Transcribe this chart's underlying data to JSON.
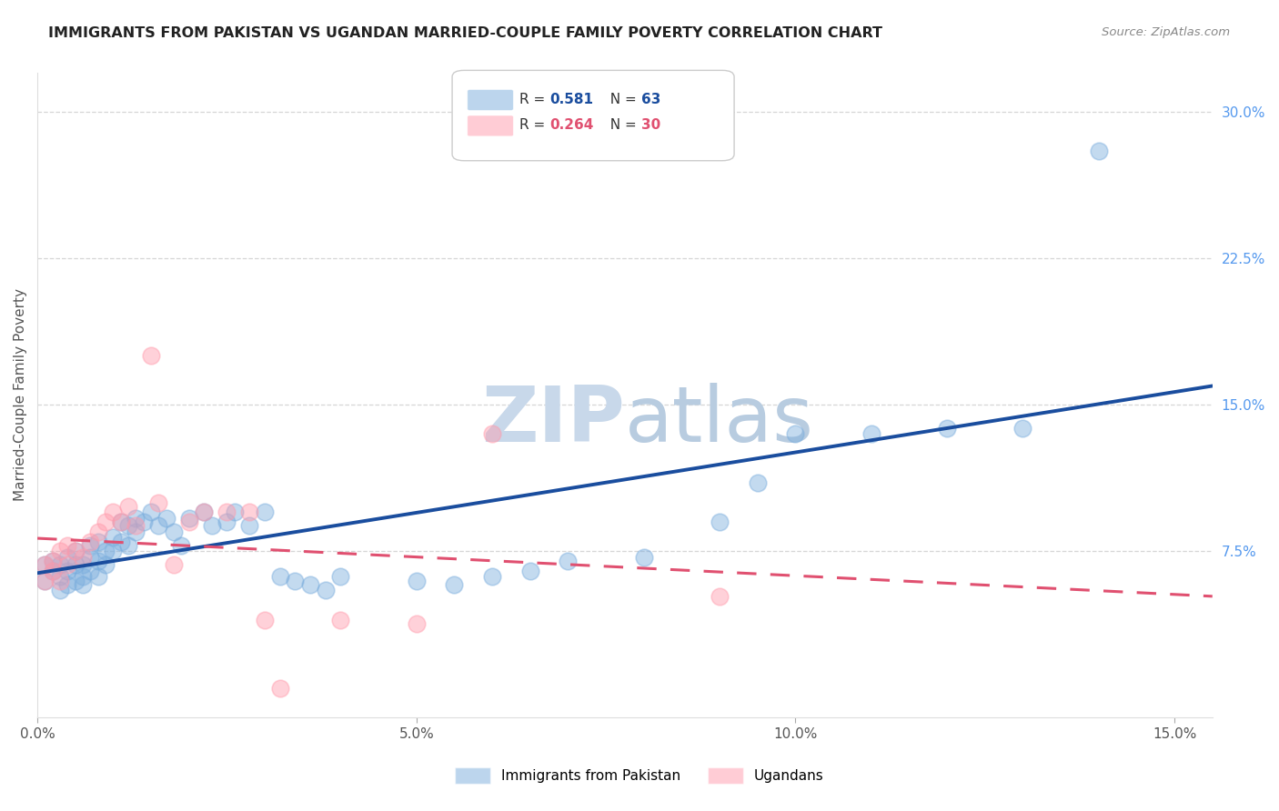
{
  "title": "IMMIGRANTS FROM PAKISTAN VS UGANDAN MARRIED-COUPLE FAMILY POVERTY CORRELATION CHART",
  "source": "Source: ZipAtlas.com",
  "ylabel": "Married-Couple Family Poverty",
  "xlim": [
    0.0,
    0.155
  ],
  "ylim": [
    -0.01,
    0.32
  ],
  "xticks": [
    0.0,
    0.05,
    0.1,
    0.15
  ],
  "xtick_labels": [
    "0.0%",
    "5.0%",
    "10.0%",
    "15.0%"
  ],
  "yticks_right": [
    0.075,
    0.15,
    0.225,
    0.3
  ],
  "ytick_labels_right": [
    "7.5%",
    "15.0%",
    "22.5%",
    "30.0%"
  ],
  "pakistan_R": 0.581,
  "pakistan_N": 63,
  "uganda_R": 0.264,
  "uganda_N": 30,
  "pakistan_color": "#7AADDD",
  "uganda_color": "#FF9BAC",
  "pakistan_line_color": "#1A4D9E",
  "uganda_line_color": "#E05070",
  "background_color": "#FFFFFF",
  "grid_color": "#CCCCCC",
  "watermark_color": "#C8D8EA",
  "pakistan_x": [
    0.001,
    0.001,
    0.002,
    0.002,
    0.003,
    0.003,
    0.003,
    0.004,
    0.004,
    0.004,
    0.005,
    0.005,
    0.005,
    0.006,
    0.006,
    0.006,
    0.007,
    0.007,
    0.007,
    0.008,
    0.008,
    0.008,
    0.009,
    0.009,
    0.01,
    0.01,
    0.011,
    0.011,
    0.012,
    0.012,
    0.013,
    0.013,
    0.014,
    0.015,
    0.016,
    0.017,
    0.018,
    0.019,
    0.02,
    0.022,
    0.023,
    0.025,
    0.026,
    0.028,
    0.03,
    0.032,
    0.034,
    0.036,
    0.038,
    0.04,
    0.05,
    0.055,
    0.06,
    0.065,
    0.07,
    0.08,
    0.09,
    0.095,
    0.1,
    0.11,
    0.12,
    0.13,
    0.14
  ],
  "pakistan_y": [
    0.06,
    0.068,
    0.065,
    0.07,
    0.055,
    0.062,
    0.068,
    0.058,
    0.065,
    0.072,
    0.06,
    0.068,
    0.075,
    0.062,
    0.068,
    0.058,
    0.065,
    0.072,
    0.078,
    0.062,
    0.07,
    0.08,
    0.068,
    0.075,
    0.075,
    0.082,
    0.08,
    0.09,
    0.078,
    0.088,
    0.085,
    0.092,
    0.09,
    0.095,
    0.088,
    0.092,
    0.085,
    0.078,
    0.092,
    0.095,
    0.088,
    0.09,
    0.095,
    0.088,
    0.095,
    0.062,
    0.06,
    0.058,
    0.055,
    0.062,
    0.06,
    0.058,
    0.062,
    0.065,
    0.07,
    0.072,
    0.09,
    0.11,
    0.135,
    0.135,
    0.138,
    0.138,
    0.28
  ],
  "uganda_x": [
    0.001,
    0.001,
    0.002,
    0.002,
    0.003,
    0.003,
    0.004,
    0.004,
    0.005,
    0.006,
    0.007,
    0.008,
    0.009,
    0.01,
    0.011,
    0.012,
    0.013,
    0.015,
    0.016,
    0.018,
    0.02,
    0.022,
    0.025,
    0.028,
    0.03,
    0.032,
    0.04,
    0.05,
    0.06,
    0.09
  ],
  "uganda_y": [
    0.06,
    0.068,
    0.065,
    0.07,
    0.06,
    0.075,
    0.068,
    0.078,
    0.075,
    0.072,
    0.08,
    0.085,
    0.09,
    0.095,
    0.09,
    0.098,
    0.088,
    0.175,
    0.1,
    0.068,
    0.09,
    0.095,
    0.095,
    0.095,
    0.04,
    0.005,
    0.04,
    0.038,
    0.135,
    0.052
  ]
}
